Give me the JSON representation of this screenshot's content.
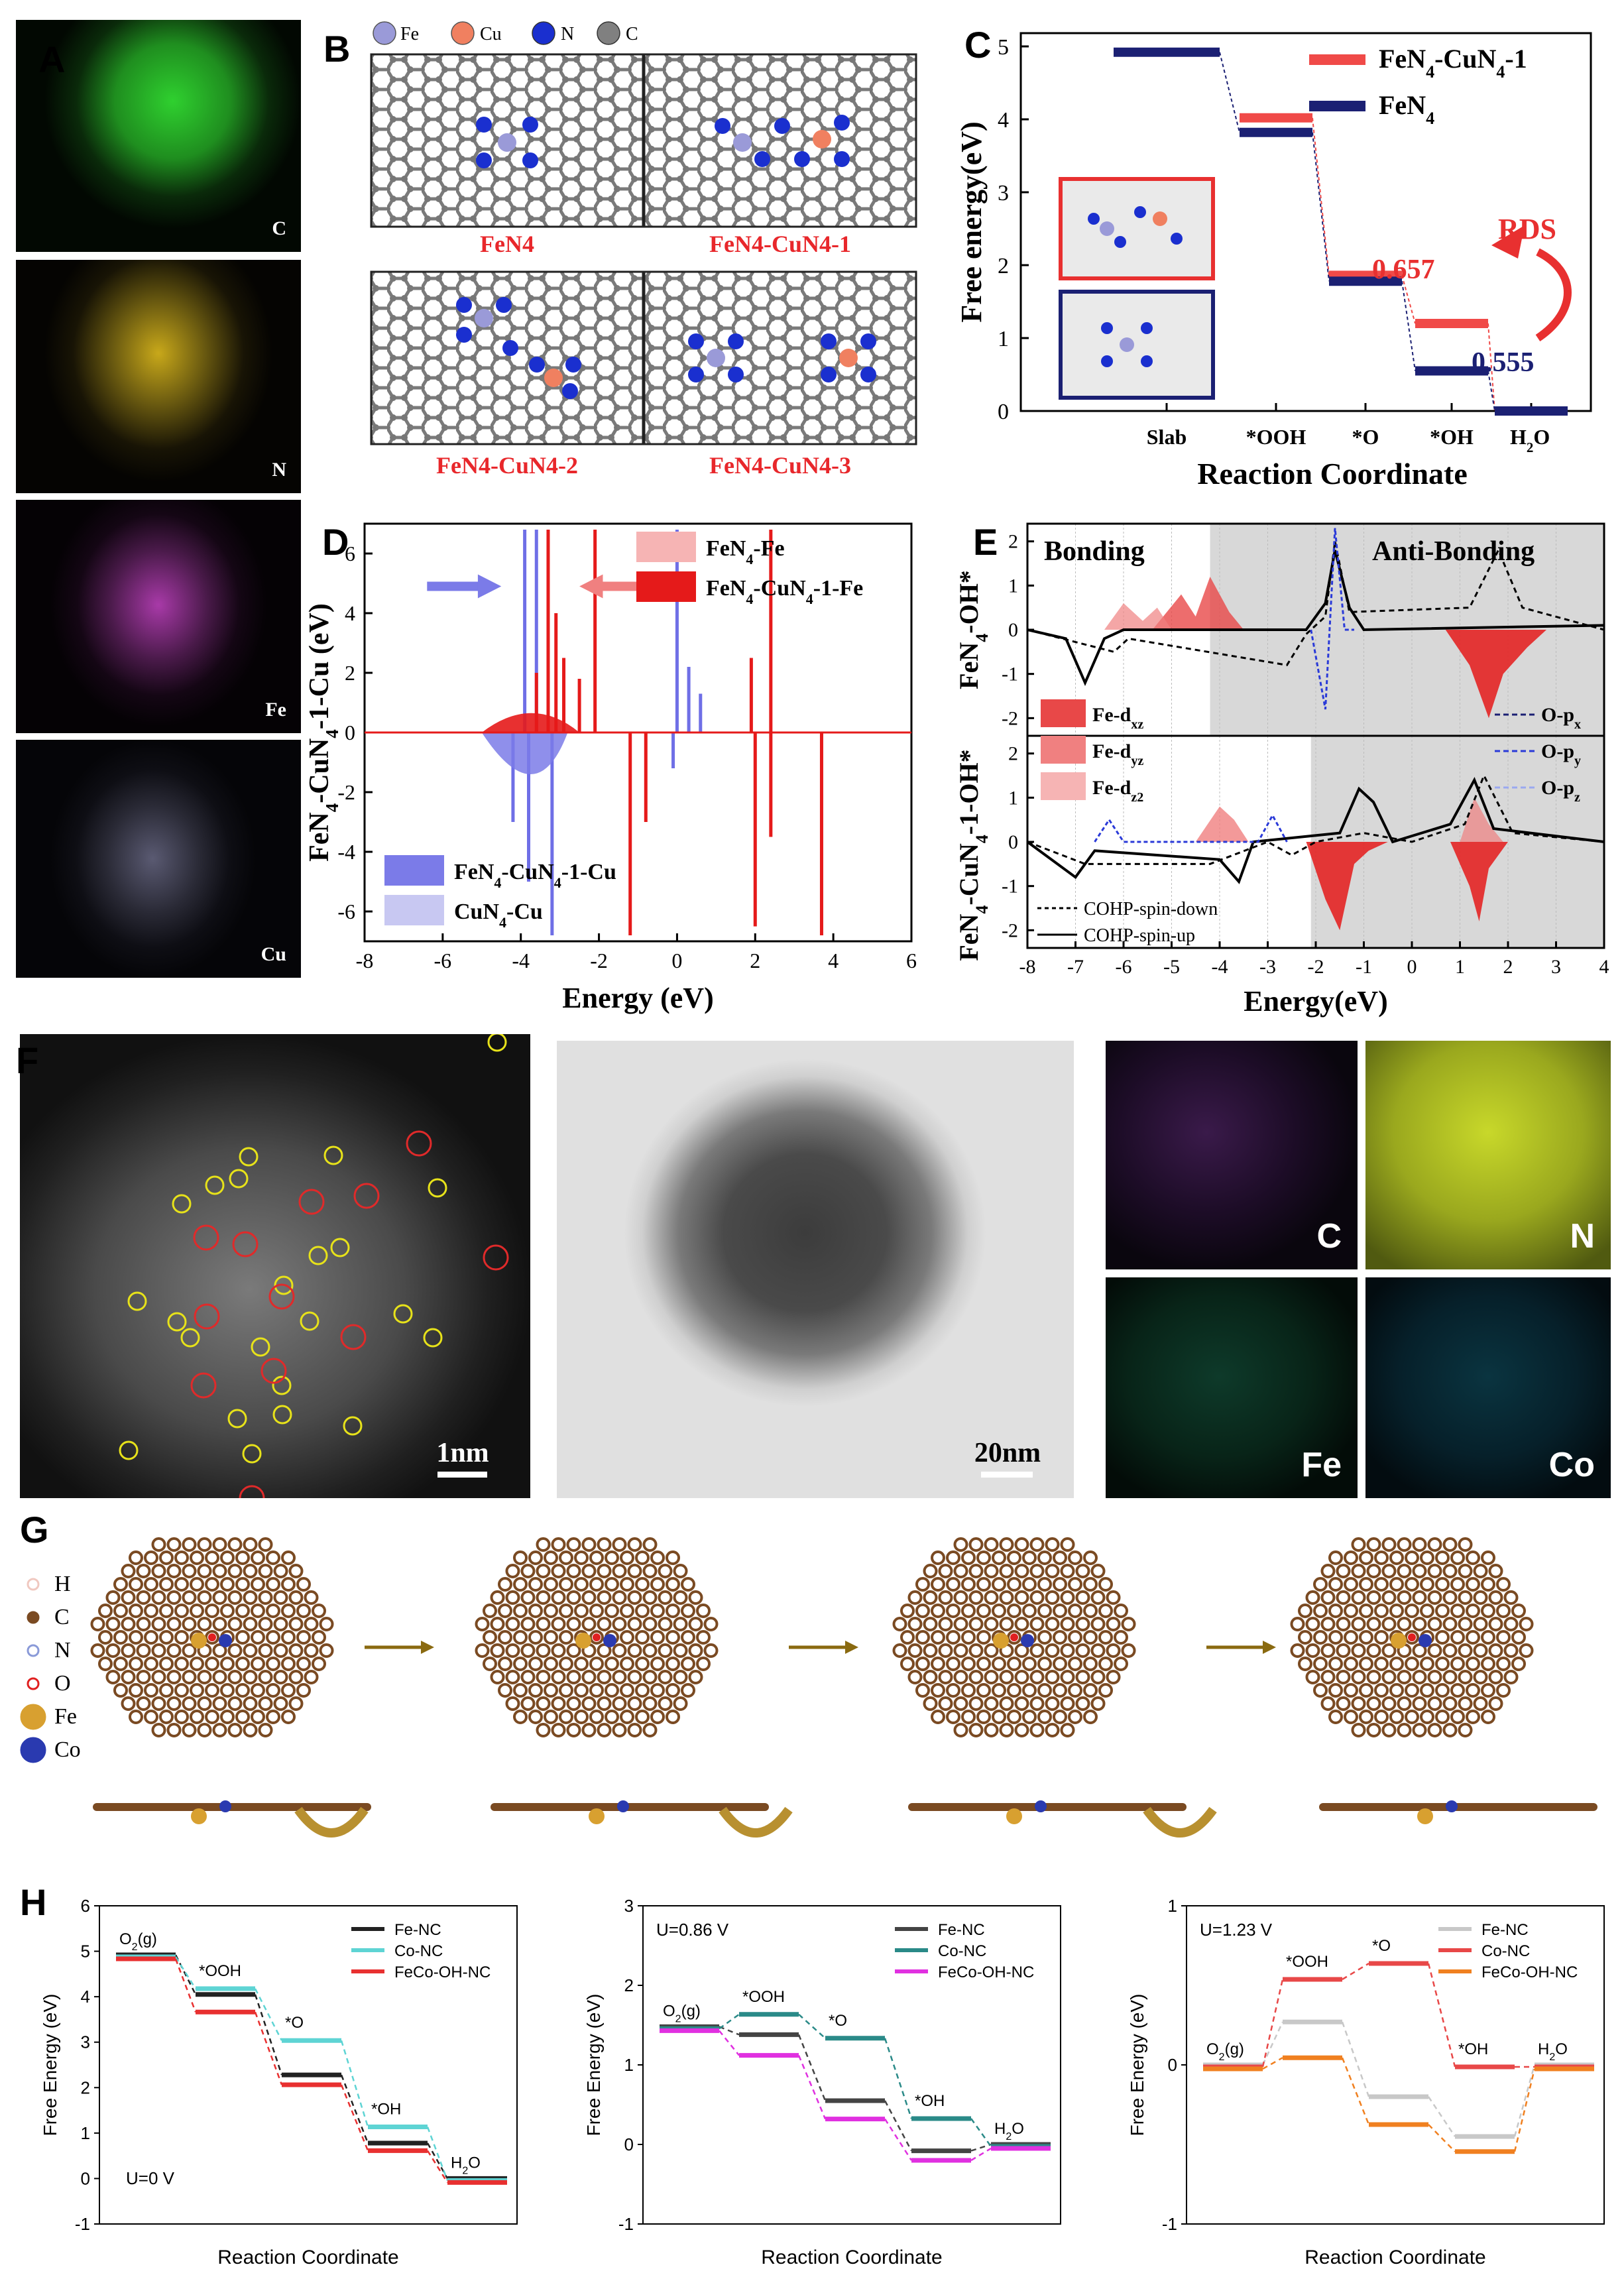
{
  "panel_labels": {
    "A": "A",
    "B": "B",
    "C": "C",
    "D": "D",
    "E": "E",
    "F": "F",
    "G": "G",
    "H": "H"
  },
  "panel_a": {
    "maps": [
      {
        "element": "C",
        "color": "#2fc42f"
      },
      {
        "element": "N",
        "color": "#e3c31c"
      },
      {
        "element": "Fe",
        "color": "#c13fc4"
      },
      {
        "element": "Cu",
        "color": "#b9b9d6"
      }
    ]
  },
  "panel_b": {
    "legend": [
      {
        "label": "Fe",
        "color": "#9a9ad8"
      },
      {
        "label": "Cu",
        "color": "#f08060"
      },
      {
        "label": "N",
        "color": "#1a2fcf"
      },
      {
        "label": "C",
        "color": "#808080"
      }
    ],
    "structures": [
      "FeN4",
      "FeN4-CuN4-1",
      "FeN4-CuN4-2",
      "FeN4-CuN4-3"
    ]
  },
  "panel_c": {
    "chart_data": {
      "type": "line",
      "ylabel": "Free energy(eV)",
      "xlabel": "Reaction Coordinate",
      "categories": [
        "Slab",
        "*OOH",
        "*O",
        "*OH",
        "H2O"
      ],
      "ylim": [
        0,
        5
      ],
      "yticks": [
        0,
        1,
        2,
        3,
        4,
        5
      ],
      "series": [
        {
          "name": "FeN4-CuN4-1",
          "color": "#f04a48",
          "values": [
            null,
            4.02,
            1.86,
            1.2,
            0
          ]
        },
        {
          "name": "FeN4",
          "color": "#1b2073",
          "values": [
            4.92,
            3.82,
            1.78,
            0.55,
            0
          ]
        }
      ],
      "annotations": {
        "rds": "RDS",
        "v1": "0.657",
        "v2": "0.555"
      }
    }
  },
  "panel_d": {
    "chart_data": {
      "type": "area",
      "ylabel": "FeN4-CuN4-1-Cu (eV)",
      "xlabel": "Energy (eV)",
      "xlim": [
        -8,
        6
      ],
      "ylim": [
        -7,
        7
      ],
      "xticks": [
        -8,
        -6,
        -4,
        -2,
        0,
        2,
        4,
        6
      ],
      "yticks": [
        -6,
        -4,
        -2,
        0,
        2,
        4,
        6
      ],
      "legend_top": [
        {
          "label": "FeN4-Fe",
          "color": "#f6b4b4"
        },
        {
          "label": "FeN4-CuN4-1-Fe",
          "color": "#e51a1a"
        }
      ],
      "legend_bottom": [
        {
          "label": "FeN4-CuN4-1-Cu",
          "color": "#7b7be8"
        },
        {
          "label": "CuN4-Cu",
          "color": "#c8c8f2"
        }
      ]
    }
  },
  "panel_e": {
    "chart_data": {
      "type": "area",
      "xlabel": "Energy(eV)",
      "xlim": [
        -8,
        4
      ],
      "xticks": [
        -8,
        -7,
        -6,
        -5,
        -4,
        -3,
        -2,
        -1,
        0,
        1,
        2,
        3,
        4
      ],
      "top": {
        "ylabel": "FeN4-OH*",
        "yticks": [
          -2,
          -1,
          0,
          1,
          2
        ],
        "bonding": "Bonding",
        "antibonding": "Anti-Bonding"
      },
      "bottom": {
        "ylabel": "FeN4-CuN4-1-OH*",
        "yticks": [
          -2,
          -1,
          0,
          1,
          2
        ]
      },
      "legend_fe": [
        "Fe-dxz",
        "Fe-dyz",
        "Fe-dz2"
      ],
      "legend_o": [
        "O-px",
        "O-py",
        "O-pz"
      ],
      "legend_cohp": [
        "COHP-spin-down",
        "COHP-spin-up"
      ]
    }
  },
  "panel_f": {
    "scalebars": [
      "1nm",
      "20nm"
    ],
    "maps": [
      {
        "element": "C",
        "color": "#b040d8"
      },
      {
        "element": "N",
        "color": "#c8e23a"
      },
      {
        "element": "Fe",
        "color": "#2aa87c"
      },
      {
        "element": "Co",
        "color": "#2aa6c8"
      }
    ]
  },
  "panel_g": {
    "legend": [
      {
        "label": "H",
        "color": "#f0c8c0"
      },
      {
        "label": "C",
        "color": "#7a4a22"
      },
      {
        "label": "N",
        "color": "#8a9ad8"
      },
      {
        "label": "O",
        "color": "#e02020"
      },
      {
        "label": "Fe",
        "color": "#d8a030"
      },
      {
        "label": "Co",
        "color": "#2a3ab0"
      }
    ]
  },
  "panel_h": {
    "chart_data": [
      {
        "type": "line",
        "potential": "U=0 V",
        "ylabel": "Free Energy (eV)",
        "xlabel": "Reaction Coordinate",
        "ylim": [
          -1,
          6
        ],
        "yticks": [
          -1,
          0,
          1,
          2,
          3,
          4,
          5,
          6
        ],
        "step_labels": [
          "O2(g)",
          "*OOH",
          "*O",
          "*OH",
          "H2O"
        ],
        "series": [
          {
            "name": "Fe-NC",
            "color": "#222222",
            "values": [
              4.92,
              4.05,
              2.28,
              0.78,
              0
            ]
          },
          {
            "name": "Co-NC",
            "color": "#5ed4d4",
            "values": [
              4.92,
              4.22,
              3.08,
              1.18,
              0
            ]
          },
          {
            "name": "FeCo-OH-NC",
            "color": "#e83030",
            "values": [
              4.92,
              3.75,
              2.15,
              0.7,
              0
            ]
          }
        ]
      },
      {
        "type": "line",
        "potential": "U=0.86 V",
        "ylabel": "Free Energy (eV)",
        "xlabel": "Reaction Coordinate",
        "ylim": [
          -1,
          3
        ],
        "yticks": [
          -1,
          0,
          1,
          2,
          3
        ],
        "step_labels": [
          "O2(g)",
          "*OOH",
          "*O",
          "*OH",
          "H2O"
        ],
        "series": [
          {
            "name": "Fe-NC",
            "color": "#444444",
            "values": [
              1.48,
              1.38,
              0.55,
              -0.08,
              0
            ]
          },
          {
            "name": "Co-NC",
            "color": "#2a8a88",
            "values": [
              1.48,
              1.66,
              1.36,
              0.35,
              0
            ]
          },
          {
            "name": "FeCo-OH-NC",
            "color": "#e030e0",
            "values": [
              1.48,
              1.17,
              0.37,
              -0.15,
              0
            ]
          }
        ]
      },
      {
        "type": "line",
        "potential": "U=1.23 V",
        "ylabel": "Free Energy (eV)",
        "xlabel": "Reaction Coordinate",
        "ylim": [
          -1,
          1
        ],
        "yticks": [
          -1,
          0,
          1
        ],
        "step_labels": [
          "O2(g)",
          "*OOH",
          "*O",
          "*OH",
          "H2O"
        ],
        "series": [
          {
            "name": "Fe-NC",
            "color": "#c8c8c8",
            "values": [
              0,
              0.27,
              -0.2,
              -0.45,
              0
            ]
          },
          {
            "name": "Co-NC",
            "color": "#e84848",
            "values": [
              0,
              0.55,
              0.65,
              0,
              0
            ]
          },
          {
            "name": "FeCo-OH-NC",
            "color": "#f08020",
            "values": [
              0,
              0.07,
              -0.35,
              -0.52,
              0
            ]
          }
        ]
      }
    ]
  }
}
